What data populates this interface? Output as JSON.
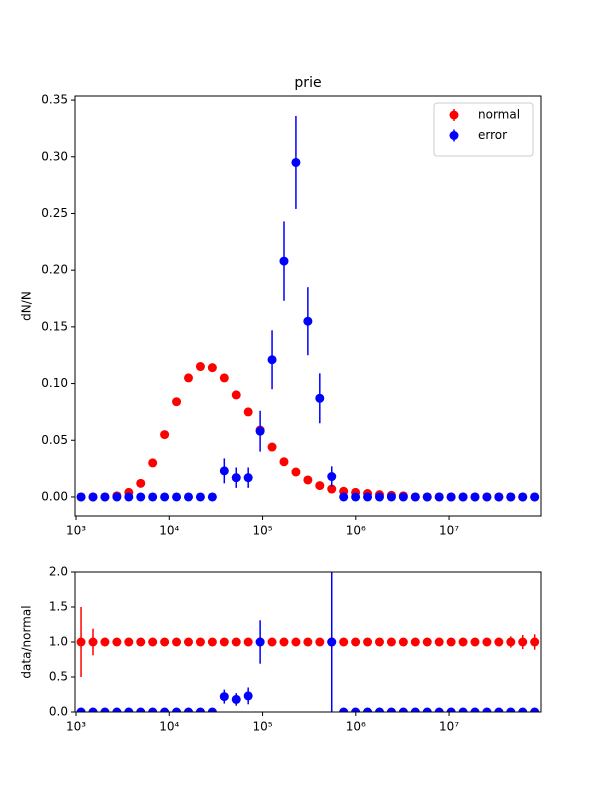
{
  "chart_data": [
    {
      "type": "errorbar",
      "title": "prie",
      "ylabel": "dN/N",
      "xscale": "log",
      "legend": "upper right",
      "x": [
        1132,
        1521,
        2042,
        2742,
        3681,
        4943,
        6637,
        8913,
        11967,
        16069,
        21577,
        28973,
        38905,
        52240,
        70146,
        94189,
        126474,
        169824,
        228034,
        306196,
        411150,
        552077,
        741310,
        995405,
        1336596,
        1794734,
        2409905,
        3235937,
        4345102,
        5834451,
        7834296,
        10519619,
        14125375,
        18967059,
        25468302,
        34197944,
        45919801,
        61659500,
        82794168
      ],
      "xlim": [
        975,
        96800000
      ],
      "xticks": [
        {
          "value": 1000,
          "label": "10³"
        },
        {
          "value": 10000,
          "label": "10⁴"
        },
        {
          "value": 100000,
          "label": "10⁵"
        },
        {
          "value": 1000000,
          "label": "10⁶"
        },
        {
          "value": 10000000,
          "label": "10⁷"
        }
      ],
      "ylim": [
        -0.0168,
        0.3536
      ],
      "yticks": [
        {
          "value": 0,
          "label": "0.00"
        },
        0.05,
        {
          "value": 0.1,
          "label": "0.10"
        },
        0.15,
        {
          "value": 0.2,
          "label": "0.20"
        },
        0.25,
        {
          "value": 0.3,
          "label": "0.30"
        },
        0.35
      ],
      "series": [
        {
          "name": "normal",
          "color": "#ff0000",
          "values": [
            0,
            0,
            0,
            0.001,
            0.004,
            0.012,
            0.03,
            0.055,
            0.084,
            0.105,
            0.115,
            0.114,
            0.105,
            0.09,
            0.075,
            0.059,
            0.044,
            0.031,
            0.022,
            0.015,
            0.01,
            0.007,
            0.005,
            0.004,
            0.003,
            0.002,
            0.0015,
            0.001,
            0,
            0,
            0,
            0,
            0,
            0,
            0,
            0,
            0,
            0,
            0
          ]
        },
        {
          "name": "error",
          "color": "#0000ff",
          "values": [
            0,
            0,
            0,
            0,
            0,
            0,
            0,
            0,
            0,
            0,
            0,
            0,
            0.023,
            0.017,
            0.017,
            0.058,
            0.121,
            0.208,
            0.295,
            0.155,
            0.087,
            0.018,
            0,
            0,
            0,
            0,
            0,
            0,
            0,
            0,
            0,
            0,
            0,
            0,
            0,
            0,
            0,
            0,
            0
          ],
          "errors": [
            0,
            0,
            0,
            0,
            0,
            0,
            0,
            0,
            0,
            0,
            0,
            0,
            0.011,
            0.009,
            0.009,
            0.018,
            0.026,
            0.035,
            0.041,
            0.03,
            0.022,
            0.009,
            0,
            0,
            0,
            0,
            0,
            0,
            0,
            0,
            0,
            0,
            0,
            0,
            0,
            0,
            0,
            0,
            0
          ]
        }
      ]
    },
    {
      "type": "errorbar",
      "ylabel": "data/normal",
      "xscale": "log",
      "x": [
        1132,
        1521,
        2042,
        2742,
        3681,
        4943,
        6637,
        8913,
        11967,
        16069,
        21577,
        28973,
        38905,
        52240,
        70146,
        94189,
        126474,
        169824,
        228034,
        306196,
        411150,
        552077,
        741310,
        995405,
        1336596,
        1794734,
        2409905,
        3235937,
        4345102,
        5834451,
        7834296,
        10519619,
        14125375,
        18967059,
        25468302,
        34197944,
        45919801,
        61659500,
        82794168
      ],
      "xlim": [
        975,
        96800000
      ],
      "xticks": [
        {
          "value": 1000,
          "label": "10³"
        },
        {
          "value": 10000,
          "label": "10⁴"
        },
        {
          "value": 100000,
          "label": "10⁵"
        },
        {
          "value": 1000000,
          "label": "10⁶"
        },
        {
          "value": 10000000,
          "label": "10⁷"
        }
      ],
      "ylim": [
        0,
        2
      ],
      "yticks": [
        {
          "value": 0,
          "label": "0.0"
        },
        0.5,
        {
          "value": 1,
          "label": "1.0"
        },
        1.5,
        {
          "value": 2,
          "label": "2.0"
        }
      ],
      "series": [
        {
          "color": "#ff0000",
          "values": [
            1,
            1,
            1,
            1,
            1,
            1,
            1,
            1,
            1,
            1,
            1,
            1,
            1,
            1,
            1,
            1,
            1,
            1,
            1,
            1,
            1,
            1,
            1,
            1,
            1,
            1,
            1,
            1,
            1,
            1,
            1,
            1,
            1,
            1,
            1,
            1,
            1,
            1,
            1
          ],
          "errors": [
            0.5,
            0.19,
            0.06,
            0.04,
            0.03,
            0.02,
            0.02,
            0.02,
            0.02,
            0.02,
            0.02,
            0.02,
            0.02,
            0.02,
            0.02,
            0.02,
            0.02,
            0.02,
            0.02,
            0.02,
            0.02,
            0.02,
            0.02,
            0.02,
            0.02,
            0.02,
            0.02,
            0.02,
            0.02,
            0.02,
            0.02,
            0.03,
            0.03,
            0.04,
            0.05,
            0.06,
            0.08,
            0.1,
            0.11
          ]
        },
        {
          "color": "#0000ff",
          "values": [
            0,
            0,
            0,
            0,
            0,
            0,
            0,
            0,
            0,
            0,
            0,
            0,
            0.22,
            0.18,
            0.23,
            1,
            null,
            null,
            null,
            null,
            null,
            1,
            0,
            0,
            0,
            0,
            0,
            0,
            0,
            0,
            0,
            0,
            0,
            0,
            0,
            0,
            0,
            0,
            0
          ],
          "errors": [
            0,
            0,
            0,
            0,
            0,
            0,
            0,
            0,
            0,
            0,
            0,
            0,
            0.1,
            0.09,
            0.12,
            0.31,
            null,
            null,
            null,
            null,
            null,
            1.2,
            0,
            0,
            0,
            0,
            0,
            0,
            0,
            0,
            0,
            0,
            0,
            0,
            0,
            0,
            0,
            0,
            0
          ]
        }
      ]
    }
  ]
}
